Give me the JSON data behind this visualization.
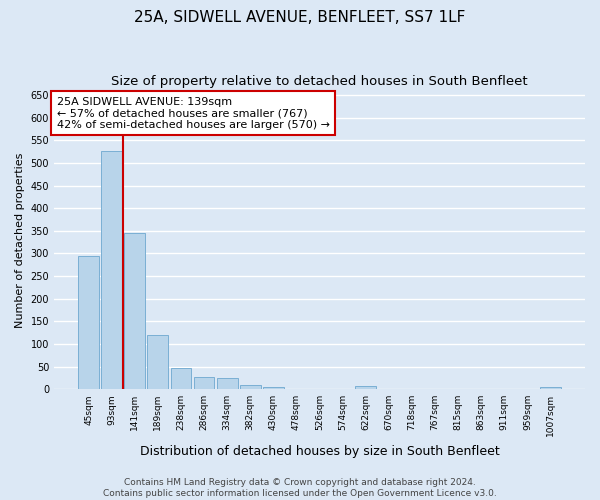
{
  "title": "25A, SIDWELL AVENUE, BENFLEET, SS7 1LF",
  "subtitle": "Size of property relative to detached houses in South Benfleet",
  "xlabel": "Distribution of detached houses by size in South Benfleet",
  "ylabel": "Number of detached properties",
  "categories": [
    "45sqm",
    "93sqm",
    "141sqm",
    "189sqm",
    "238sqm",
    "286sqm",
    "334sqm",
    "382sqm",
    "430sqm",
    "478sqm",
    "526sqm",
    "574sqm",
    "622sqm",
    "670sqm",
    "718sqm",
    "767sqm",
    "815sqm",
    "863sqm",
    "911sqm",
    "959sqm",
    "1007sqm"
  ],
  "values": [
    295,
    527,
    345,
    120,
    46,
    28,
    25,
    10,
    5,
    0,
    0,
    0,
    8,
    0,
    0,
    0,
    0,
    0,
    0,
    0,
    5
  ],
  "bar_color": "#b8d4ea",
  "bar_edge_color": "#7aafd4",
  "vline_color": "#cc0000",
  "annotation_text": "25A SIDWELL AVENUE: 139sqm\n← 57% of detached houses are smaller (767)\n42% of semi-detached houses are larger (570) →",
  "annotation_box_color": "#ffffff",
  "annotation_box_edge_color": "#cc0000",
  "background_color": "#dce8f5",
  "plot_bg_color": "#dce8f5",
  "grid_color": "#ffffff",
  "ylim": [
    0,
    660
  ],
  "yticks": [
    0,
    50,
    100,
    150,
    200,
    250,
    300,
    350,
    400,
    450,
    500,
    550,
    600,
    650
  ],
  "footer_line1": "Contains HM Land Registry data © Crown copyright and database right 2024.",
  "footer_line2": "Contains public sector information licensed under the Open Government Licence v3.0.",
  "title_fontsize": 11,
  "subtitle_fontsize": 9.5,
  "xlabel_fontsize": 9,
  "ylabel_fontsize": 8,
  "annotation_fontsize": 8,
  "footer_fontsize": 6.5,
  "vline_index": 2
}
